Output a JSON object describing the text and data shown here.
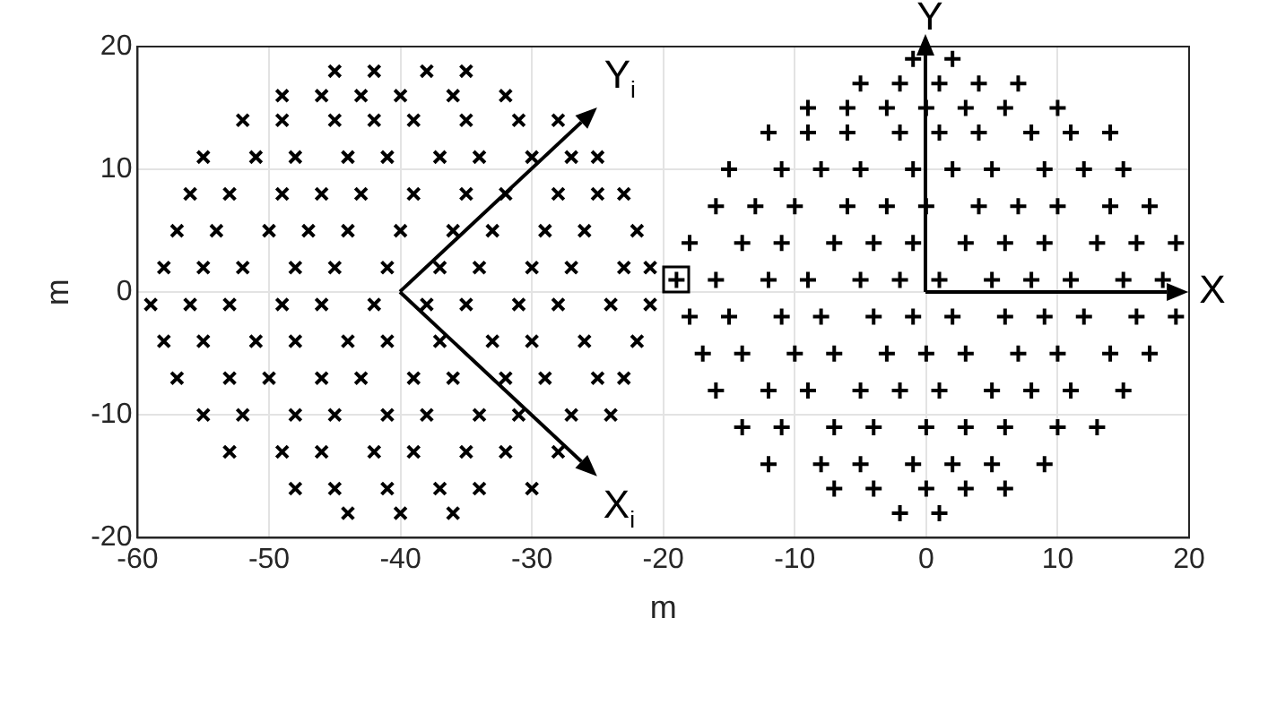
{
  "chart_data": {
    "type": "scatter",
    "xlabel": "m",
    "ylabel": "m",
    "xlim": [
      -60,
      20
    ],
    "xticks": [
      -60,
      -50,
      -40,
      -30,
      -20,
      -10,
      0,
      10,
      20
    ],
    "ylim": [
      -20,
      20
    ],
    "yticks": [
      -20,
      -10,
      0,
      10,
      20
    ],
    "grid": true,
    "legend": false,
    "annotations": [
      "X",
      "Y",
      "X$_{i}$",
      "Y$_{i}$"
    ],
    "series": [
      {
        "color": "#000000",
        "marker": "cross",
        "x": [
          -45,
          -42,
          -38,
          -35,
          -49,
          -46,
          -43,
          -40,
          -36,
          -32,
          -52,
          -49,
          -45,
          -42,
          -39,
          -35,
          -31,
          -28,
          -55,
          -51,
          -48,
          -44,
          -41,
          -37,
          -34,
          -30,
          -27,
          -25,
          -56,
          -53,
          -49,
          -46,
          -43,
          -39,
          -35,
          -32,
          -28,
          -25,
          -23,
          -57,
          -54,
          -50,
          -47,
          -44,
          -40,
          -36,
          -33,
          -29,
          -26,
          -22,
          -58,
          -55,
          -52,
          -48,
          -45,
          -41,
          -37,
          -34,
          -30,
          -27,
          -23,
          -21,
          -59,
          -56,
          -53,
          -49,
          -46,
          -42,
          -38,
          -35,
          -31,
          -28,
          -24,
          -21,
          -58,
          -55,
          -51,
          -48,
          -44,
          -41,
          -37,
          -33,
          -30,
          -26,
          -22,
          -57,
          -53,
          -50,
          -46,
          -43,
          -39,
          -36,
          -32,
          -29,
          -25,
          -23,
          -55,
          -52,
          -48,
          -45,
          -41,
          -38,
          -34,
          -31,
          -27,
          -24,
          -53,
          -49,
          -46,
          -42,
          -39,
          -35,
          -32,
          -28,
          -48,
          -45,
          -41,
          -37,
          -34,
          -30,
          -44,
          -40,
          -36
        ],
        "values": [
          18,
          18,
          18,
          18,
          16,
          16,
          16,
          16,
          16,
          16,
          14,
          14,
          14,
          14,
          14,
          14,
          14,
          14,
          11,
          11,
          11,
          11,
          11,
          11,
          11,
          11,
          11,
          11,
          8,
          8,
          8,
          8,
          8,
          8,
          8,
          8,
          8,
          8,
          8,
          5,
          5,
          5,
          5,
          5,
          5,
          5,
          5,
          5,
          5,
          5,
          2,
          2,
          2,
          2,
          2,
          2,
          2,
          2,
          2,
          2,
          2,
          2,
          -1,
          -1,
          -1,
          -1,
          -1,
          -1,
          -1,
          -1,
          -1,
          -1,
          -1,
          -1,
          -4,
          -4,
          -4,
          -4,
          -4,
          -4,
          -4,
          -4,
          -4,
          -4,
          -4,
          -7,
          -7,
          -7,
          -7,
          -7,
          -7,
          -7,
          -7,
          -7,
          -7,
          -7,
          -10,
          -10,
          -10,
          -10,
          -10,
          -10,
          -10,
          -10,
          -10,
          -10,
          -13,
          -13,
          -13,
          -13,
          -13,
          -13,
          -13,
          -13,
          -16,
          -16,
          -16,
          -16,
          -16,
          -16,
          -18,
          -18,
          -18
        ]
      },
      {
        "color": "#000000",
        "marker": "plus",
        "x": [
          -1,
          2,
          -5,
          -2,
          1,
          4,
          7,
          -9,
          -6,
          -3,
          0,
          3,
          6,
          10,
          -12,
          -9,
          -6,
          -2,
          1,
          4,
          8,
          11,
          14,
          -15,
          -11,
          -8,
          -5,
          -1,
          2,
          5,
          9,
          12,
          15,
          -16,
          -13,
          -10,
          -6,
          -3,
          0,
          4,
          7,
          10,
          14,
          17,
          -18,
          -14,
          -11,
          -7,
          -4,
          -1,
          3,
          6,
          9,
          13,
          16,
          19,
          -19,
          -16,
          -12,
          -9,
          -5,
          -2,
          1,
          5,
          8,
          11,
          15,
          18,
          -18,
          -15,
          -11,
          -8,
          -4,
          -1,
          2,
          6,
          9,
          12,
          16,
          19,
          -17,
          -14,
          -10,
          -7,
          -3,
          0,
          3,
          7,
          10,
          14,
          17,
          -16,
          -12,
          -9,
          -5,
          -2,
          1,
          5,
          8,
          11,
          15,
          -14,
          -11,
          -7,
          -4,
          0,
          3,
          6,
          10,
          13,
          -12,
          -8,
          -5,
          -1,
          2,
          5,
          9,
          -7,
          -4,
          0,
          3,
          6,
          -2,
          1
        ],
        "values": [
          19,
          19,
          17,
          17,
          17,
          17,
          17,
          15,
          15,
          15,
          15,
          15,
          15,
          15,
          13,
          13,
          13,
          13,
          13,
          13,
          13,
          13,
          13,
          10,
          10,
          10,
          10,
          10,
          10,
          10,
          10,
          10,
          10,
          7,
          7,
          7,
          7,
          7,
          7,
          7,
          7,
          7,
          7,
          7,
          4,
          4,
          4,
          4,
          4,
          4,
          4,
          4,
          4,
          4,
          4,
          4,
          1,
          1,
          1,
          1,
          1,
          1,
          1,
          1,
          1,
          1,
          1,
          1,
          -2,
          -2,
          -2,
          -2,
          -2,
          -2,
          -2,
          -2,
          -2,
          -2,
          -2,
          -2,
          -5,
          -5,
          -5,
          -5,
          -5,
          -5,
          -5,
          -5,
          -5,
          -5,
          -5,
          -8,
          -8,
          -8,
          -8,
          -8,
          -8,
          -8,
          -8,
          -8,
          -8,
          -11,
          -11,
          -11,
          -11,
          -11,
          -11,
          -11,
          -11,
          -11,
          -14,
          -14,
          -14,
          -14,
          -14,
          -14,
          -14,
          -16,
          -16,
          -16,
          -16,
          -16,
          -18,
          -18
        ]
      }
    ]
  }
}
